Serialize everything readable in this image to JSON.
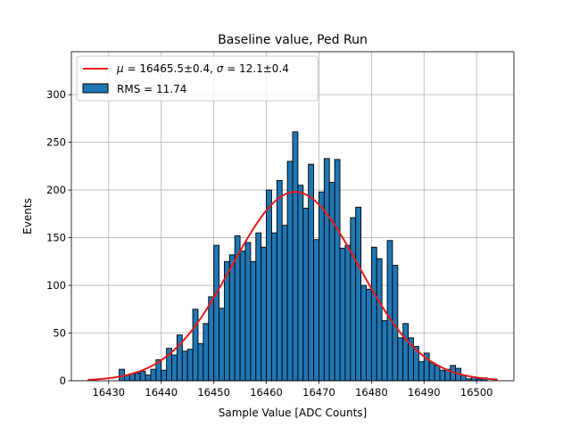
{
  "chart_data": {
    "type": "bar",
    "title": "Baseline value, Ped Run",
    "xlabel": "Sample Value [ADC Counts]",
    "ylabel": "Events",
    "xlim": [
      16422.9,
      16507.1
    ],
    "ylim": [
      0,
      345
    ],
    "xticks": [
      16430,
      16440,
      16450,
      16460,
      16470,
      16480,
      16490,
      16500
    ],
    "yticks": [
      0,
      50,
      100,
      150,
      200,
      250,
      300
    ],
    "grid": true,
    "legend_position": "upper-left",
    "bin_width": 1,
    "histogram": {
      "name": "RMS = 11.74",
      "color": "#1f77b4",
      "edgecolor": "#000000",
      "bins": [
        16432,
        16433,
        16434,
        16435,
        16436,
        16437,
        16438,
        16439,
        16440,
        16441,
        16442,
        16443,
        16444,
        16445,
        16446,
        16447,
        16448,
        16449,
        16450,
        16451,
        16452,
        16453,
        16454,
        16455,
        16456,
        16457,
        16458,
        16459,
        16460,
        16461,
        16462,
        16463,
        16464,
        16465,
        16466,
        16467,
        16468,
        16469,
        16470,
        16471,
        16472,
        16473,
        16474,
        16475,
        16476,
        16477,
        16478,
        16479,
        16480,
        16481,
        16482,
        16483,
        16484,
        16485,
        16486,
        16487,
        16488,
        16489,
        16490,
        16491,
        16492,
        16493,
        16494,
        16495,
        16496,
        16497,
        16498,
        16499,
        16500,
        16501
      ],
      "counts": [
        12,
        6,
        7,
        8,
        10,
        6,
        12,
        22,
        11,
        34,
        27,
        48,
        31,
        33,
        75,
        39,
        60,
        88,
        142,
        76,
        125,
        132,
        152,
        136,
        145,
        125,
        155,
        140,
        200,
        155,
        210,
        163,
        230,
        261,
        205,
        181,
        227,
        148,
        198,
        233,
        208,
        232,
        139,
        142,
        171,
        182,
        100,
        96,
        140,
        128,
        63,
        147,
        121,
        45,
        60,
        45,
        36,
        20,
        29,
        19,
        16,
        11,
        12,
        16,
        13,
        6,
        2,
        4,
        2,
        3
      ]
    },
    "fit": {
      "name": "$\\mu = 16465.5{\\pm}0.4$, $\\sigma = 12.1{\\pm}0.4$",
      "legend_mu": "μ",
      "legend_mu_value": " = 16465.5±0.4, ",
      "legend_sigma": "σ",
      "legend_sigma_value": " = 12.1±0.4",
      "mu": 16465.5,
      "sigma": 12.1,
      "amplitude": 198,
      "x_range": [
        16426,
        16504
      ],
      "color": "#e41a1c"
    },
    "legend": {
      "fit_label_parts": [
        "μ",
        " = 16465.5±0.4, ",
        "σ",
        " = 12.1±0.4"
      ],
      "hist_label": "RMS = 11.74"
    }
  }
}
